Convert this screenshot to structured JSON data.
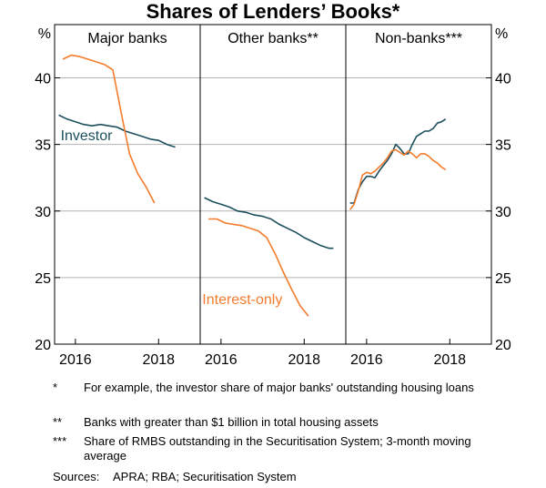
{
  "chart_data": {
    "type": "line",
    "title": "Shares of Lenders’ Books*",
    "y_unit_left": "%",
    "y_unit_right": "%",
    "ylim": [
      20,
      44
    ],
    "yticks": [
      20,
      25,
      30,
      35,
      40
    ],
    "xlim": [
      2015.5,
      2019.0
    ],
    "xticks": [
      2016,
      2018
    ],
    "grid": true,
    "panels": [
      {
        "title": "Major banks",
        "series": [
          {
            "name": "Investor",
            "color": "#1c4f5e",
            "label": "Investor",
            "points": [
              [
                2015.6,
                37.2
              ],
              [
                2015.8,
                36.9
              ],
              [
                2016.0,
                36.7
              ],
              [
                2016.2,
                36.5
              ],
              [
                2016.4,
                36.4
              ],
              [
                2016.6,
                36.5
              ],
              [
                2016.8,
                36.4
              ],
              [
                2017.0,
                36.3
              ],
              [
                2017.2,
                36.0
              ],
              [
                2017.4,
                35.8
              ],
              [
                2017.6,
                35.6
              ],
              [
                2017.8,
                35.4
              ],
              [
                2018.0,
                35.3
              ],
              [
                2018.2,
                35.0
              ],
              [
                2018.4,
                34.8
              ]
            ]
          },
          {
            "name": "Interest-only",
            "color": "#f47c2c",
            "label": "",
            "points": [
              [
                2015.7,
                41.4
              ],
              [
                2015.9,
                41.7
              ],
              [
                2016.1,
                41.6
              ],
              [
                2016.3,
                41.4
              ],
              [
                2016.5,
                41.2
              ],
              [
                2016.7,
                41.0
              ],
              [
                2016.9,
                40.6
              ],
              [
                2017.1,
                37.4
              ],
              [
                2017.3,
                34.3
              ],
              [
                2017.5,
                32.8
              ],
              [
                2017.7,
                31.8
              ],
              [
                2017.9,
                30.6
              ]
            ]
          }
        ]
      },
      {
        "title": "Other banks**",
        "series": [
          {
            "name": "Investor",
            "color": "#1c4f5e",
            "label": "",
            "points": [
              [
                2015.6,
                31.0
              ],
              [
                2015.8,
                30.7
              ],
              [
                2016.0,
                30.5
              ],
              [
                2016.2,
                30.3
              ],
              [
                2016.4,
                30.0
              ],
              [
                2016.6,
                29.9
              ],
              [
                2016.8,
                29.7
              ],
              [
                2017.0,
                29.6
              ],
              [
                2017.2,
                29.4
              ],
              [
                2017.4,
                29.0
              ],
              [
                2017.6,
                28.7
              ],
              [
                2017.8,
                28.4
              ],
              [
                2018.0,
                28.0
              ],
              [
                2018.2,
                27.7
              ],
              [
                2018.4,
                27.4
              ],
              [
                2018.6,
                27.2
              ],
              [
                2018.7,
                27.2
              ]
            ]
          },
          {
            "name": "Interest-only",
            "color": "#f47c2c",
            "label": "Interest-only",
            "points": [
              [
                2015.7,
                29.4
              ],
              [
                2015.9,
                29.4
              ],
              [
                2016.1,
                29.1
              ],
              [
                2016.3,
                29.0
              ],
              [
                2016.5,
                28.9
              ],
              [
                2016.7,
                28.7
              ],
              [
                2016.9,
                28.5
              ],
              [
                2017.1,
                28.0
              ],
              [
                2017.3,
                26.8
              ],
              [
                2017.5,
                25.4
              ],
              [
                2017.7,
                24.1
              ],
              [
                2017.9,
                22.9
              ],
              [
                2018.1,
                22.1
              ]
            ]
          }
        ]
      },
      {
        "title": "Non-banks***",
        "series": [
          {
            "name": "Investor",
            "color": "#1c4f5e",
            "label": "",
            "points": [
              [
                2015.6,
                30.6
              ],
              [
                2015.7,
                30.6
              ],
              [
                2015.8,
                31.6
              ],
              [
                2015.9,
                32.2
              ],
              [
                2016.0,
                32.6
              ],
              [
                2016.1,
                32.6
              ],
              [
                2016.2,
                32.5
              ],
              [
                2016.3,
                33.0
              ],
              [
                2016.4,
                33.4
              ],
              [
                2016.5,
                33.8
              ],
              [
                2016.6,
                34.3
              ],
              [
                2016.7,
                35.0
              ],
              [
                2016.8,
                34.7
              ],
              [
                2016.9,
                34.3
              ],
              [
                2017.0,
                34.3
              ],
              [
                2017.1,
                35.0
              ],
              [
                2017.2,
                35.6
              ],
              [
                2017.3,
                35.8
              ],
              [
                2017.4,
                36.0
              ],
              [
                2017.5,
                36.0
              ],
              [
                2017.6,
                36.2
              ],
              [
                2017.7,
                36.6
              ],
              [
                2017.8,
                36.7
              ],
              [
                2017.9,
                36.9
              ]
            ]
          },
          {
            "name": "Interest-only",
            "color": "#f47c2c",
            "label": "",
            "points": [
              [
                2015.6,
                30.1
              ],
              [
                2015.7,
                30.5
              ],
              [
                2015.8,
                31.5
              ],
              [
                2015.9,
                32.7
              ],
              [
                2016.0,
                32.9
              ],
              [
                2016.1,
                32.8
              ],
              [
                2016.2,
                33.0
              ],
              [
                2016.3,
                33.3
              ],
              [
                2016.4,
                33.6
              ],
              [
                2016.5,
                34.0
              ],
              [
                2016.6,
                34.5
              ],
              [
                2016.7,
                34.6
              ],
              [
                2016.8,
                34.4
              ],
              [
                2016.9,
                34.2
              ],
              [
                2017.0,
                34.5
              ],
              [
                2017.1,
                34.3
              ],
              [
                2017.2,
                34.0
              ],
              [
                2017.3,
                34.3
              ],
              [
                2017.4,
                34.3
              ],
              [
                2017.5,
                34.1
              ],
              [
                2017.6,
                33.8
              ],
              [
                2017.7,
                33.6
              ],
              [
                2017.8,
                33.3
              ],
              [
                2017.9,
                33.1
              ]
            ]
          }
        ]
      }
    ]
  },
  "notes": [
    {
      "mark": "*",
      "text": "For example, the investor share of major banks' outstanding housing loans"
    },
    {
      "mark": "**",
      "text": "Banks with greater than $1 billion in total housing assets"
    },
    {
      "mark": "***",
      "text": "Share of RMBS outstanding in the Securitisation System; 3-month moving average"
    }
  ],
  "sources": {
    "label": "Sources:",
    "text": "APRA; RBA; Securitisation System"
  }
}
